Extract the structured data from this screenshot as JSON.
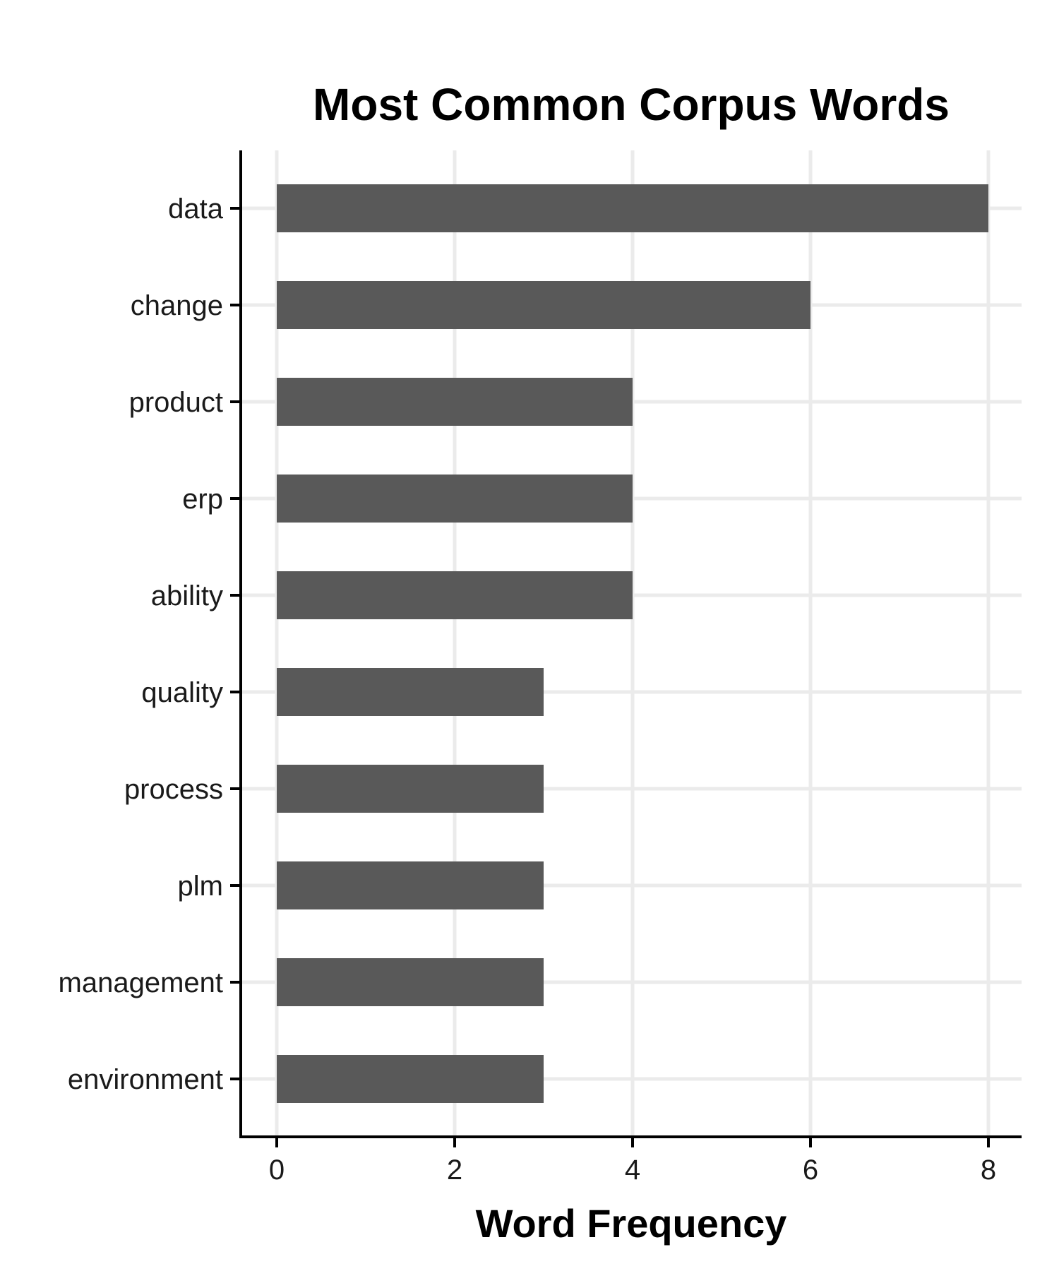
{
  "chart_data": {
    "type": "bar",
    "orientation": "horizontal",
    "title": "Most Common Corpus Words",
    "xlabel": "Word Frequency",
    "ylabel": "",
    "categories": [
      "data",
      "change",
      "product",
      "erp",
      "ability",
      "quality",
      "process",
      "plm",
      "management",
      "environment"
    ],
    "values": [
      8,
      6,
      4,
      4,
      4,
      3,
      3,
      3,
      3,
      3
    ],
    "xlim": [
      0,
      8
    ],
    "x_ticks": [
      "0",
      "2",
      "4",
      "6",
      "8"
    ],
    "grid": true,
    "legend": "none",
    "bar_color": "#595959",
    "grid_color": "#ebebeb"
  }
}
